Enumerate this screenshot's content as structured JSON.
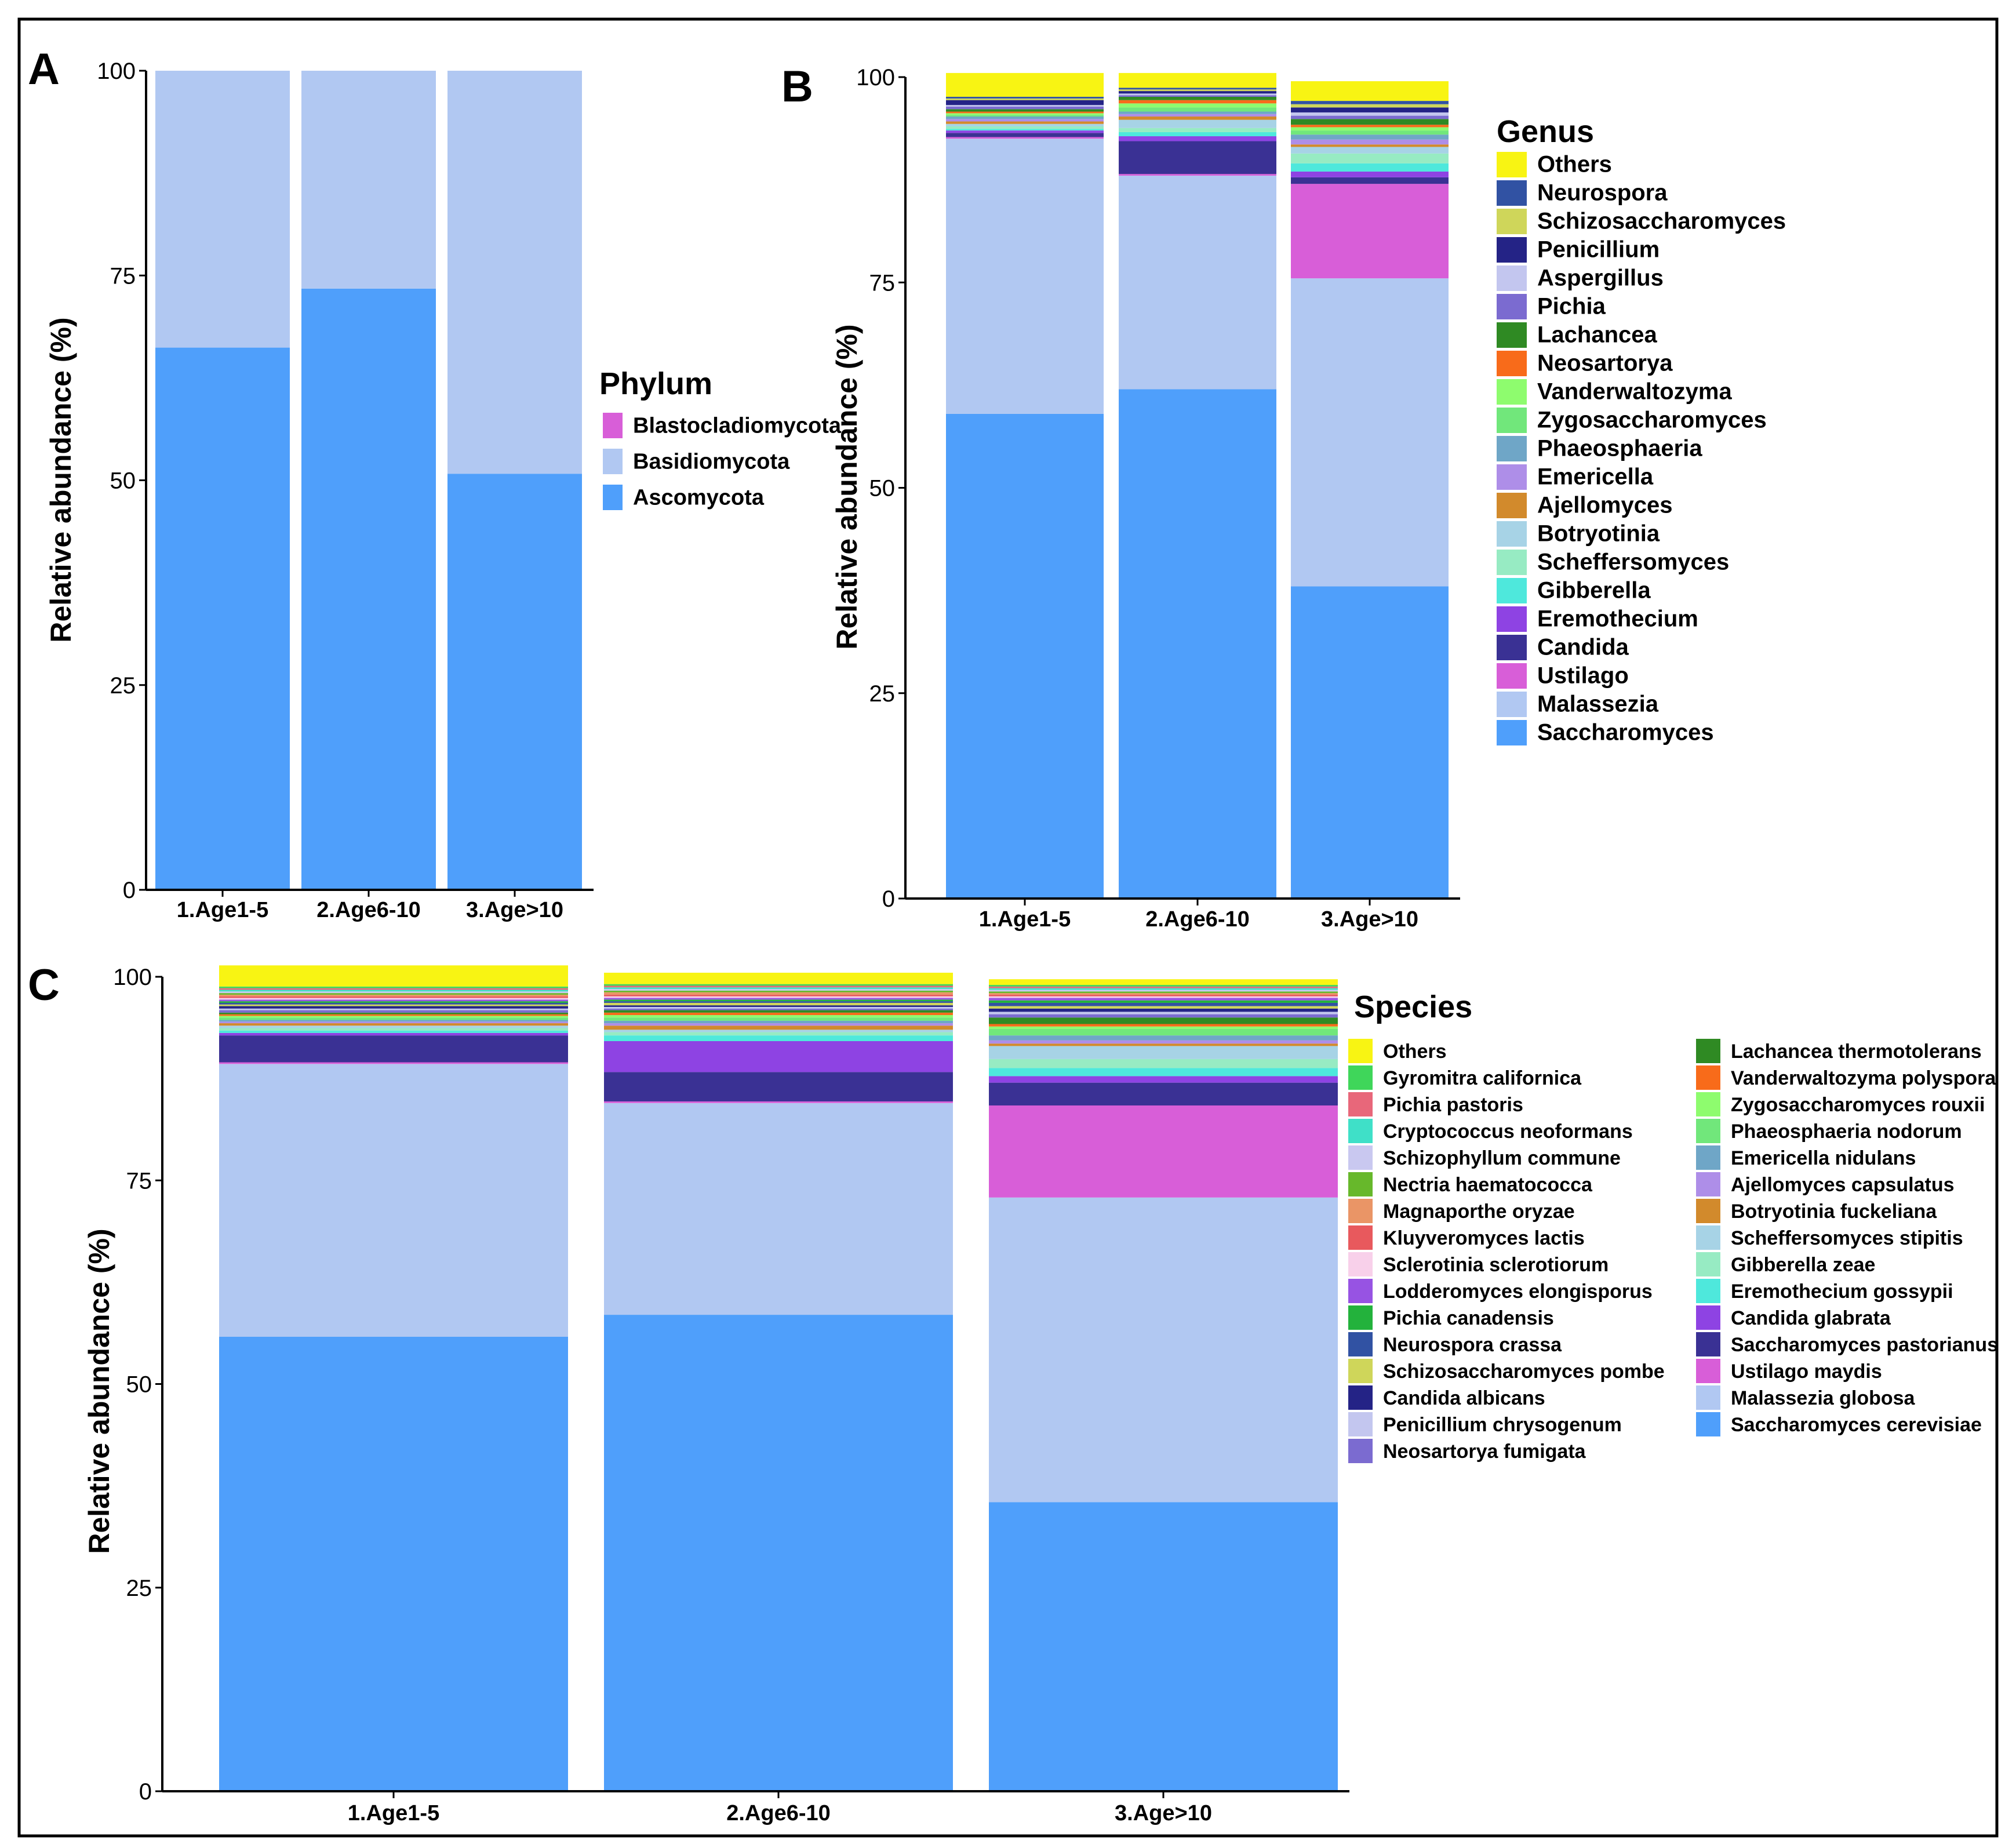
{
  "chart_data": [
    {
      "panel": "A",
      "type": "bar",
      "stacked": true,
      "categories": [
        "1.Age1-5",
        "2.Age6-10",
        "3.Age>10"
      ],
      "ylabel": "Relative abundance (%)",
      "xlabel": "",
      "ylim": [
        0,
        100
      ],
      "yticks": [
        0,
        25,
        50,
        75,
        100
      ],
      "legend_title": "Phylum",
      "legend_order": [
        "Blastocladiomycota",
        "Basidiomycota",
        "Ascomycota"
      ],
      "series": [
        {
          "name": "Ascomycota",
          "color": "#4f9ffb",
          "values": [
            66.2,
            73.4,
            50.8
          ]
        },
        {
          "name": "Basidiomycota",
          "color": "#b1c8f2",
          "values": [
            33.8,
            26.6,
            49.2
          ]
        },
        {
          "name": "Blastocladiomycota",
          "color": "#d85ed8",
          "values": [
            0,
            0,
            0
          ]
        }
      ]
    },
    {
      "panel": "B",
      "type": "bar",
      "stacked": true,
      "categories": [
        "1.Age1-5",
        "2.Age6-10",
        "3.Age>10"
      ],
      "ylabel": "Relative abundance (%)",
      "xlabel": "",
      "ylim": [
        0,
        100
      ],
      "yticks": [
        0,
        25,
        50,
        75,
        100
      ],
      "legend_title": "Genus",
      "legend_order": [
        "Others",
        "Neurospora",
        "Schizosaccharomyces",
        "Penicillium",
        "Aspergillus",
        "Pichia",
        "Lachancea",
        "Neosartorya",
        "Vanderwaltozyma",
        "Zygosaccharomyces",
        "Phaeosphaeria",
        "Emericella",
        "Ajellomyces",
        "Botryotinia",
        "Scheffersomyces",
        "Gibberella",
        "Eremothecium",
        "Candida",
        "Ustilago",
        "Malassezia",
        "Saccharomyces"
      ],
      "series": [
        {
          "name": "Saccharomyces",
          "color": "#4f9ffb",
          "values": [
            59.0,
            62.0,
            38.0
          ]
        },
        {
          "name": "Malassezia",
          "color": "#b1c8f2",
          "values": [
            33.5,
            26.0,
            37.5
          ]
        },
        {
          "name": "Ustilago",
          "color": "#d85ed8",
          "values": [
            0.2,
            0.2,
            11.5
          ]
        },
        {
          "name": "Candida",
          "color": "#3a3194",
          "values": [
            0.5,
            4.0,
            0.8
          ]
        },
        {
          "name": "Eremothecium",
          "color": "#8e43e3",
          "values": [
            0.3,
            0.6,
            0.7
          ]
        },
        {
          "name": "Gibberella",
          "color": "#4ee8dc",
          "values": [
            0.2,
            0.5,
            1.0
          ]
        },
        {
          "name": "Scheffersomyces",
          "color": "#97ebc3",
          "values": [
            0.3,
            0.5,
            1.2
          ]
        },
        {
          "name": "Botryotinia",
          "color": "#a7d3e6",
          "values": [
            0.3,
            1.0,
            0.8
          ]
        },
        {
          "name": "Ajellomyces",
          "color": "#d28a2c",
          "values": [
            0.3,
            0.4,
            0.3
          ]
        },
        {
          "name": "Emericella",
          "color": "#ae8ee8",
          "values": [
            0.3,
            0.3,
            0.6
          ]
        },
        {
          "name": "Phaeosphaeria",
          "color": "#6fa6c7",
          "values": [
            0.3,
            0.3,
            0.6
          ]
        },
        {
          "name": "Zygosaccharomyces",
          "color": "#71e77b",
          "values": [
            0.2,
            0.5,
            0.5
          ]
        },
        {
          "name": "Vanderwaltozyma",
          "color": "#8efc6e",
          "values": [
            0.2,
            0.5,
            0.4
          ]
        },
        {
          "name": "Neosartorya",
          "color": "#f86b1a",
          "values": [
            0.2,
            0.4,
            0.3
          ]
        },
        {
          "name": "Lachancea",
          "color": "#2f8a23",
          "values": [
            0.3,
            0.4,
            0.7
          ]
        },
        {
          "name": "Pichia",
          "color": "#7b6bd0",
          "values": [
            0.3,
            0.2,
            0.4
          ]
        },
        {
          "name": "Aspergillus",
          "color": "#c3c6ef",
          "values": [
            0.2,
            0.2,
            0.4
          ]
        },
        {
          "name": "Penicillium",
          "color": "#242386",
          "values": [
            0.6,
            0.3,
            0.6
          ]
        },
        {
          "name": "Schizosaccharomyces",
          "color": "#cfd65a",
          "values": [
            0.2,
            0.2,
            0.4
          ]
        },
        {
          "name": "Neurospora",
          "color": "#3152a3",
          "values": [
            0.2,
            0.2,
            0.4
          ]
        },
        {
          "name": "Others",
          "color": "#f8f413",
          "values": [
            2.9,
            1.8,
            2.4
          ]
        }
      ]
    },
    {
      "panel": "C",
      "type": "bar",
      "stacked": true,
      "categories": [
        "1.Age1-5",
        "2.Age6-10",
        "3.Age>10"
      ],
      "ylabel": "Relative abundance (%)",
      "xlabel": "",
      "ylim": [
        0,
        100
      ],
      "yticks": [
        0,
        25,
        50,
        75,
        100
      ],
      "legend_title": "Species",
      "legend_order": [
        "Others",
        "Gyromitra californica",
        "Pichia pastoris",
        "Cryptococcus neoformans",
        "Schizophyllum commune",
        "Nectria haematococca",
        "Magnaporthe oryzae",
        "Kluyveromyces lactis",
        "Sclerotinia sclerotiorum",
        "Lodderomyces elongisporus",
        "Pichia canadensis",
        "Neurospora crassa",
        "Schizosaccharomyces pombe",
        "Candida albicans",
        "Penicillium chrysogenum",
        "Neosartorya fumigata",
        "Lachancea thermotolerans",
        "Vanderwaltozyma polyspora",
        "Zygosaccharomyces rouxii",
        "Phaeosphaeria nodorum",
        "Emericella nidulans",
        "Ajellomyces capsulatus",
        "Botryotinia fuckeliana",
        "Scheffersomyces stipitis",
        "Gibberella zeae",
        "Eremothecium gossypii",
        "Candida glabrata",
        "Saccharomyces pastorianus",
        "Ustilago maydis",
        "Malassezia globosa",
        "Saccharomyces cerevisiae"
      ],
      "series": [
        {
          "name": "Saccharomyces cerevisiae",
          "color": "#4f9ffb",
          "values": [
            55.8,
            58.5,
            35.5
          ]
        },
        {
          "name": "Malassezia globosa",
          "color": "#b1c8f2",
          "values": [
            33.5,
            26.0,
            37.4
          ]
        },
        {
          "name": "Ustilago maydis",
          "color": "#d85ed8",
          "values": [
            0.2,
            0.2,
            11.3
          ]
        },
        {
          "name": "Saccharomyces pastorianus",
          "color": "#3a3194",
          "values": [
            3.3,
            3.6,
            2.8
          ]
        },
        {
          "name": "Candida glabrata",
          "color": "#8e43e3",
          "values": [
            0.3,
            3.8,
            0.8
          ]
        },
        {
          "name": "Eremothecium gossypii",
          "color": "#4ee8dc",
          "values": [
            0.3,
            0.7,
            1.0
          ]
        },
        {
          "name": "Gibberella zeae",
          "color": "#97ebc3",
          "values": [
            0.3,
            0.4,
            1.1
          ]
        },
        {
          "name": "Scheffersomyces stipitis",
          "color": "#a7d3e6",
          "values": [
            0.3,
            0.3,
            1.6
          ]
        },
        {
          "name": "Botryotinia fuckeliana",
          "color": "#d28a2c",
          "values": [
            0.3,
            0.5,
            0.3
          ]
        },
        {
          "name": "Ajellomyces capsulatus",
          "color": "#ae8ee8",
          "values": [
            0.2,
            0.3,
            0.4
          ]
        },
        {
          "name": "Emericella nidulans",
          "color": "#6fa6c7",
          "values": [
            0.2,
            0.3,
            0.6
          ]
        },
        {
          "name": "Phaeosphaeria nodorum",
          "color": "#71e77b",
          "values": [
            0.3,
            0.4,
            0.8
          ]
        },
        {
          "name": "Zygosaccharomyces rouxii",
          "color": "#8efc6e",
          "values": [
            0.2,
            0.3,
            0.3
          ]
        },
        {
          "name": "Vanderwaltozyma polyspora",
          "color": "#f86b1a",
          "values": [
            0.2,
            0.3,
            0.3
          ]
        },
        {
          "name": "Lachancea thermotolerans",
          "color": "#2f8a23",
          "values": [
            0.2,
            0.3,
            0.8
          ]
        },
        {
          "name": "Neosartorya fumigata",
          "color": "#7b6bd0",
          "values": [
            0.3,
            0.2,
            0.4
          ]
        },
        {
          "name": "Penicillium chrysogenum",
          "color": "#c3c6ef",
          "values": [
            0.2,
            0.2,
            0.3
          ]
        },
        {
          "name": "Candida albicans",
          "color": "#242386",
          "values": [
            0.3,
            0.2,
            0.4
          ]
        },
        {
          "name": "Schizosaccharomyces pombe",
          "color": "#cfd65a",
          "values": [
            0.2,
            0.3,
            0.3
          ]
        },
        {
          "name": "Neurospora crassa",
          "color": "#3152a3",
          "values": [
            0.2,
            0.2,
            0.4
          ]
        },
        {
          "name": "Pichia canadensis",
          "color": "#23b23c",
          "values": [
            0.2,
            0.2,
            0.3
          ]
        },
        {
          "name": "Lodderomyces elongisporus",
          "color": "#9753e3",
          "values": [
            0.2,
            0.2,
            0.3
          ]
        },
        {
          "name": "Sclerotinia sclerotiorum",
          "color": "#f8d0ea",
          "values": [
            0.2,
            0.2,
            0.2
          ]
        },
        {
          "name": "Kluyveromyces lactis",
          "color": "#e8595d",
          "values": [
            0.2,
            0.2,
            0.2
          ]
        },
        {
          "name": "Magnaporthe oryzae",
          "color": "#ea9566",
          "values": [
            0.2,
            0.3,
            0.2
          ]
        },
        {
          "name": "Nectria haematococca",
          "color": "#67b82b",
          "values": [
            0.2,
            0.2,
            0.2
          ]
        },
        {
          "name": "Schizophyllum commune",
          "color": "#c9c8f0",
          "values": [
            0.2,
            0.2,
            0.2
          ]
        },
        {
          "name": "Cryptococcus neoformans",
          "color": "#3fe0c8",
          "values": [
            0.2,
            0.2,
            0.2
          ]
        },
        {
          "name": "Pichia pastoris",
          "color": "#e8677a",
          "values": [
            0.2,
            0.2,
            0.2
          ]
        },
        {
          "name": "Gyromitra californica",
          "color": "#3fd65a",
          "values": [
            0.2,
            0.2,
            0.2
          ]
        },
        {
          "name": "Others",
          "color": "#f8f413",
          "values": [
            2.6,
            1.4,
            0.7
          ]
        }
      ]
    }
  ]
}
